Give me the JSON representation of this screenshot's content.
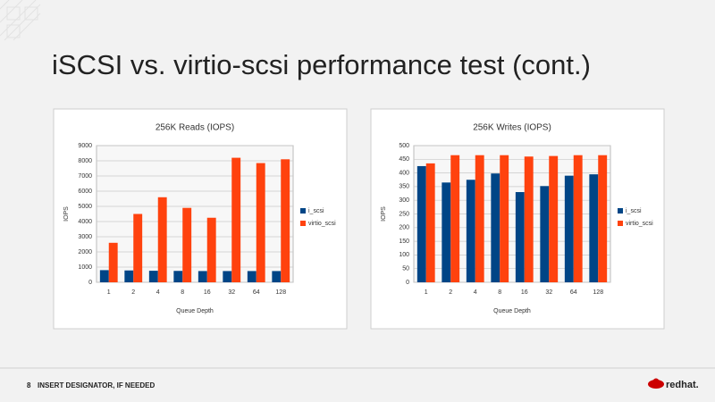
{
  "slide": {
    "title": "iSCSI vs. virtio-scsi performance test (cont.)",
    "page_number": "8",
    "footer": "INSERT DESIGNATOR, IF NEEDED",
    "logo": "redhat."
  },
  "chart_data": [
    {
      "type": "bar",
      "title": "256K Reads (IOPS)",
      "xlabel": "Queue Depth",
      "ylabel": "IOPS",
      "categories": [
        "1",
        "2",
        "4",
        "8",
        "16",
        "32",
        "64",
        "128"
      ],
      "series": [
        {
          "name": "i_scsi",
          "color": "#004586",
          "values": [
            800,
            780,
            760,
            750,
            740,
            740,
            740,
            740
          ]
        },
        {
          "name": "virtio_scsi",
          "color": "#ff420e",
          "values": [
            2600,
            4500,
            5600,
            4900,
            4250,
            8200,
            7850,
            8100
          ]
        }
      ],
      "ylim": [
        0,
        9000
      ],
      "yticks": [
        0,
        1000,
        2000,
        3000,
        4000,
        5000,
        6000,
        7000,
        8000,
        9000
      ],
      "grid": true,
      "legend": "right"
    },
    {
      "type": "bar",
      "title": "256K Writes (IOPS)",
      "xlabel": "Queue Depth",
      "ylabel": "IOPS",
      "categories": [
        "1",
        "2",
        "4",
        "8",
        "16",
        "32",
        "64",
        "128"
      ],
      "series": [
        {
          "name": "i_scsi",
          "color": "#004586",
          "values": [
            425,
            365,
            375,
            398,
            330,
            352,
            390,
            395
          ]
        },
        {
          "name": "virtio_scsi",
          "color": "#ff420e",
          "values": [
            435,
            465,
            465,
            465,
            460,
            462,
            465,
            465
          ]
        }
      ],
      "ylim": [
        0,
        500
      ],
      "yticks": [
        0,
        50,
        100,
        150,
        200,
        250,
        300,
        350,
        400,
        450,
        500
      ],
      "grid": true,
      "legend": "right"
    }
  ]
}
